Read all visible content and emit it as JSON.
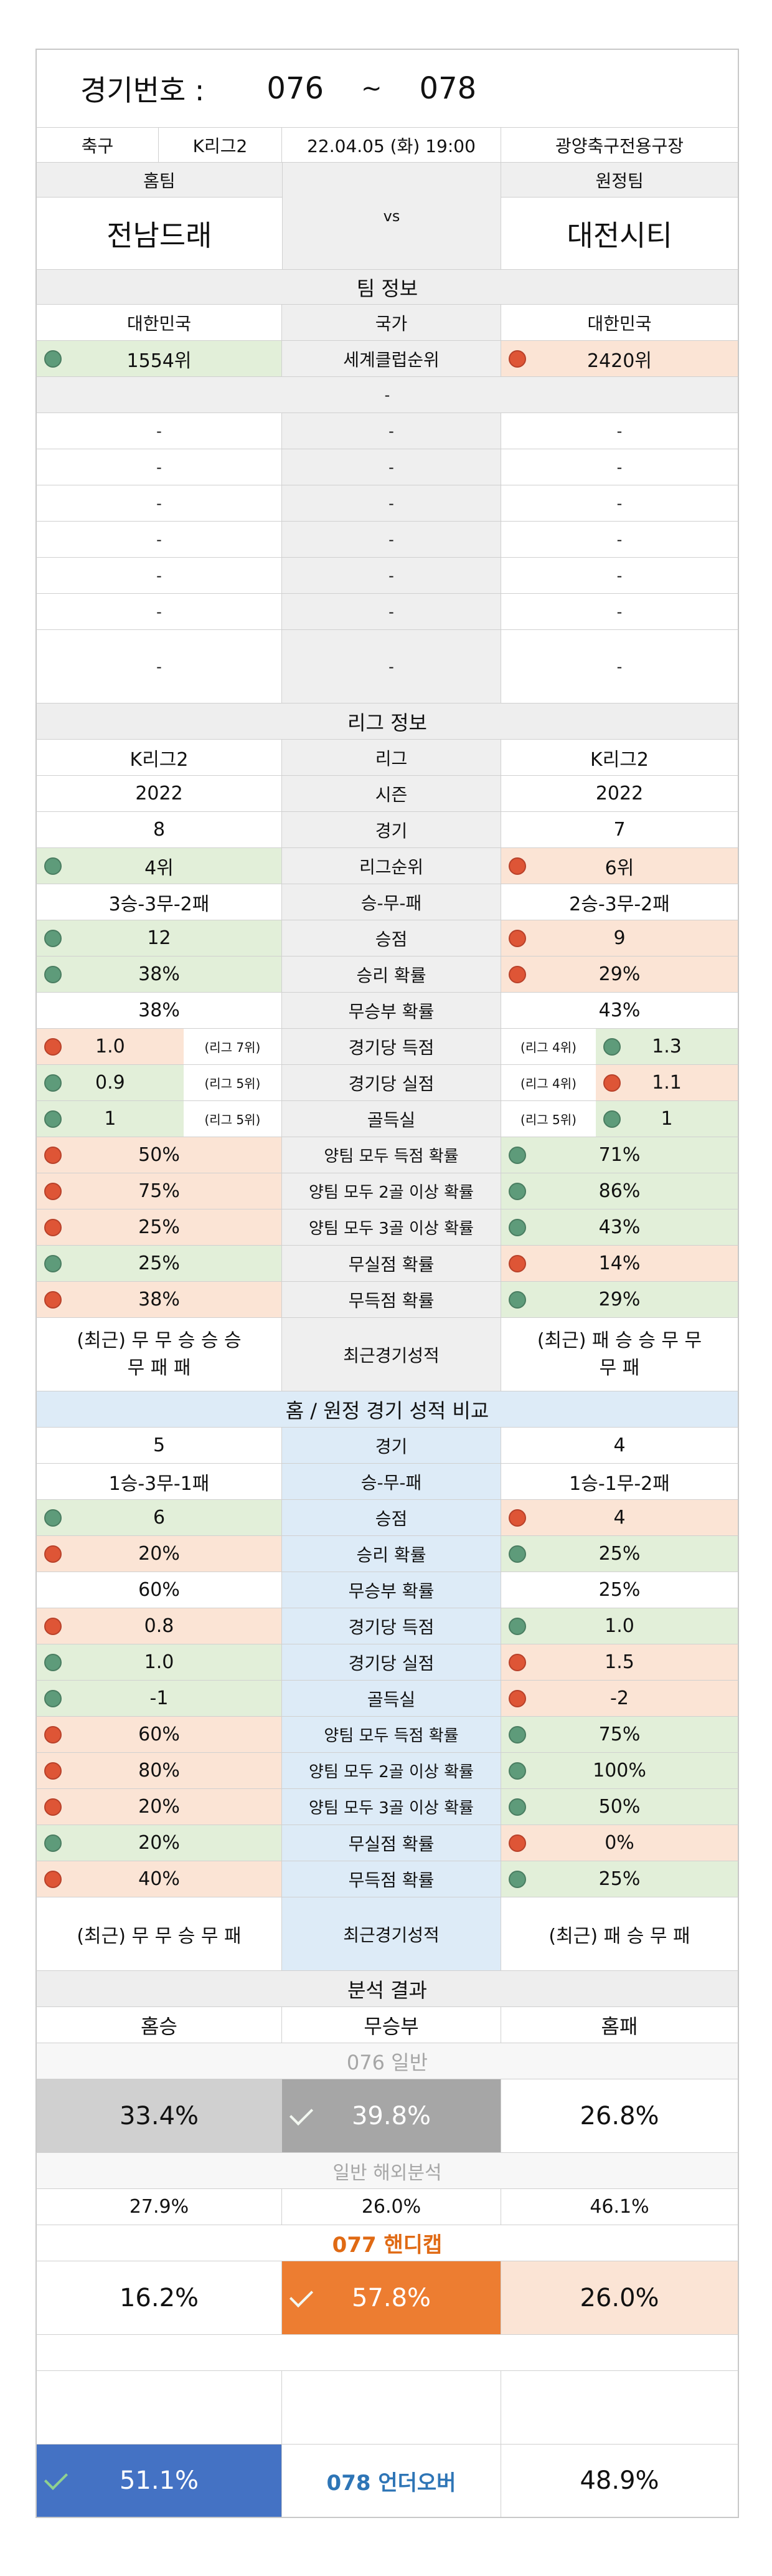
{
  "header": {
    "game_label": "경기번호 :",
    "game_from": "076",
    "tilde": "~",
    "game_to": "078"
  },
  "match": {
    "sport": "축구",
    "league": "K리그2",
    "datetime": "22.04.05 (화) 19:00",
    "venue": "광양축구전용구장",
    "home_label": "홈팀",
    "away_label": "원정팀",
    "vs": "vs",
    "home_team": "전남드래",
    "away_team": "대전시티"
  },
  "team_info": {
    "title": "팀 정보",
    "country_home": "대한민국",
    "country_label": "국가",
    "country_away": "대한민국",
    "rank_home": "1554위",
    "rank_label": "세계클럽순위",
    "rank_away": "2420위",
    "dash": "-",
    "blank_rows": [
      "-",
      "-",
      "-",
      "-",
      "-",
      "-",
      "-",
      "-"
    ]
  },
  "league_info": {
    "title": "리그 정보",
    "rows": [
      {
        "home": "K리그2",
        "label": "리그",
        "away": "K리그2"
      },
      {
        "home": "2022",
        "label": "시즌",
        "away": "2022"
      },
      {
        "home": "8",
        "label": "경기",
        "away": "7"
      },
      {
        "home": "4위",
        "label": "리그순위",
        "away": "6위"
      },
      {
        "home": "3승-3무-2패",
        "label": "승-무-패",
        "away": "2승-3무-2패"
      },
      {
        "home": "12",
        "label": "승점",
        "away": "9"
      },
      {
        "home": "38%",
        "label": "승리 확률",
        "away": "29%"
      },
      {
        "home": "38%",
        "label": "무승부 확률",
        "away": "43%"
      },
      {
        "home": "1.0",
        "home_note": "(리그 7위)",
        "label": "경기당 득점",
        "away_note": "(리그 4위)",
        "away": "1.3"
      },
      {
        "home": "0.9",
        "home_note": "(리그 5위)",
        "label": "경기당 실점",
        "away_note": "(리그 4위)",
        "away": "1.1"
      },
      {
        "home": "1",
        "home_note": "(리그 5위)",
        "label": "골득실",
        "away_note": "(리그 5위)",
        "away": "1"
      },
      {
        "home": "50%",
        "label": "양팀 모두 득점 확률",
        "away": "71%"
      },
      {
        "home": "75%",
        "label": "양팀 모두 2골 이상 확률",
        "away": "86%"
      },
      {
        "home": "25%",
        "label": "양팀 모두 3골 이상 확률",
        "away": "43%"
      },
      {
        "home": "25%",
        "label": "무실점 확률",
        "away": "14%"
      },
      {
        "home": "38%",
        "label": "무득점 확률",
        "away": "29%"
      }
    ],
    "recent_home_1": "(최근) 무 무 승 승 승",
    "recent_home_2": "무 패 패",
    "recent_label": "최근경기성적",
    "recent_away_1": "(최근) 패 승 승 무 무",
    "recent_away_2": "무 패"
  },
  "compare": {
    "title": "홈 / 원정 경기 성적 비교",
    "rows": [
      {
        "home": "5",
        "label": "경기",
        "away": "4"
      },
      {
        "home": "1승-3무-1패",
        "label": "승-무-패",
        "away": "1승-1무-2패"
      },
      {
        "home": "6",
        "label": "승점",
        "away": "4"
      },
      {
        "home": "20%",
        "label": "승리 확률",
        "away": "25%"
      },
      {
        "home": "60%",
        "label": "무승부 확률",
        "away": "25%"
      },
      {
        "home": "0.8",
        "label": "경기당 득점",
        "away": "1.0"
      },
      {
        "home": "1.0",
        "label": "경기당 실점",
        "away": "1.5"
      },
      {
        "home": "-1",
        "label": "골득실",
        "away": "-2"
      },
      {
        "home": "60%",
        "label": "양팀 모두 득점 확률",
        "away": "75%"
      },
      {
        "home": "80%",
        "label": "양팀 모두 2골 이상 확률",
        "away": "100%"
      },
      {
        "home": "20%",
        "label": "양팀 모두 3골 이상 확률",
        "away": "50%"
      },
      {
        "home": "20%",
        "label": "무실점 확률",
        "away": "0%"
      },
      {
        "home": "40%",
        "label": "무득점 확률",
        "away": "25%"
      }
    ],
    "recent_home": "(최근) 무 무 승 무 패",
    "recent_label": "최근경기성적",
    "recent_away": "(최근) 패 승 무 패"
  },
  "analysis": {
    "title": "분석 결과",
    "col_home": "홈승",
    "col_draw": "무승부",
    "col_away": "홈패",
    "general_label": "076 일반",
    "general_home": "33.4%",
    "general_draw": "39.8%",
    "general_away": "26.8%",
    "overseas_label": "일반 해외분석",
    "overseas_home": "27.9%",
    "overseas_draw": "26.0%",
    "overseas_away": "46.1%",
    "handicap_label": "077 핸디캡",
    "handicap_home": "16.2%",
    "handicap_draw": "57.8%",
    "handicap_away": "26.0%",
    "under_over_home": "51.1%",
    "under_over_label": "078 언더오버",
    "under_over_away": "48.9%"
  },
  "colors": {
    "green_bg": "#e2efd9",
    "red_bg": "#fbe4d5",
    "green_dot": "#5e9b7a",
    "red_dot": "#de5536",
    "blue_bg": "#ddebf7",
    "orange": "#ed7d31",
    "blue_strong": "#4472c4",
    "gray_strong": "#a6a6a6"
  }
}
